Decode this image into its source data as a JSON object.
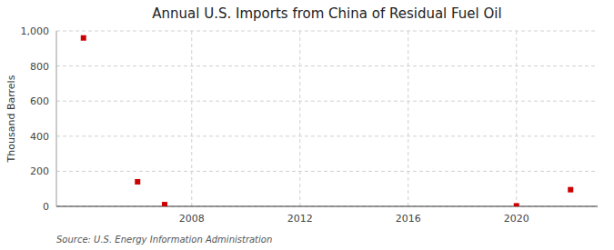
{
  "chart_data": {
    "type": "scatter",
    "title": "Annual U.S. Imports from China of Residual Fuel Oil",
    "y_label": "Thousand Barrels",
    "annotations": [
      "Source: U.S. Energy Information Administration"
    ],
    "x": [
      2004,
      2006,
      2007,
      2020,
      2022
    ],
    "values": [
      960,
      140,
      10,
      3,
      95
    ],
    "color": "#cc0000",
    "marker": "square",
    "xlim": [
      2003,
      2023
    ],
    "xticks": [
      2008,
      2012,
      2016,
      2020
    ],
    "ylim": [
      0,
      1000
    ],
    "yticks": [
      0,
      200,
      400,
      600,
      800,
      {
        "value": 1000,
        "label": "1,000"
      }
    ],
    "grid": true
  }
}
